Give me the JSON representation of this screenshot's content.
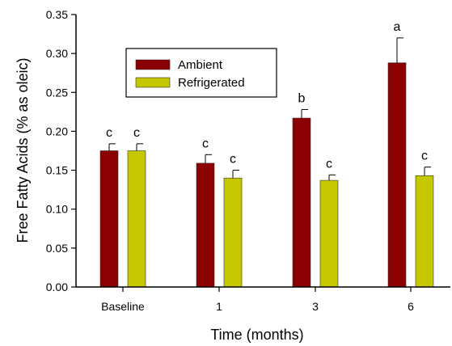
{
  "colors": {
    "ambient": "#8b0000",
    "refrigerated": "#c5c800",
    "axis": "#000000"
  },
  "chart_data": {
    "type": "bar",
    "xlabel": "Time (months)",
    "ylabel": "Free Fatty Acids (% as oleic)",
    "ylim": [
      0,
      0.35
    ],
    "yticks": [
      "0.00",
      "0.05",
      "0.10",
      "0.15",
      "0.20",
      "0.25",
      "0.30",
      "0.35"
    ],
    "categories": [
      "Baseline",
      "1",
      "3",
      "6"
    ],
    "series": [
      {
        "name": "Ambient",
        "values": [
          0.175,
          0.159,
          0.217,
          0.288
        ],
        "errors": [
          0.009,
          0.011,
          0.011,
          0.032
        ],
        "labels": [
          "c",
          "c",
          "b",
          "a"
        ]
      },
      {
        "name": "Refrigerated",
        "values": [
          0.175,
          0.14,
          0.137,
          0.143
        ],
        "errors": [
          0.009,
          0.01,
          0.007,
          0.011
        ],
        "labels": [
          "c",
          "c",
          "c",
          "c"
        ]
      }
    ],
    "legend_position": "top-left"
  }
}
